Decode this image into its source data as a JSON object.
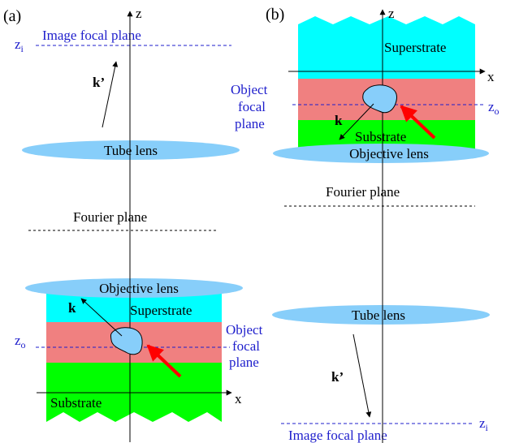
{
  "panel_a": {
    "label": "(a)",
    "z_axis": "z",
    "x_axis": "x",
    "zi_main": "z",
    "zi_sub": "i",
    "image_focal_plane": "Image focal plane",
    "k_prime": "k’",
    "tube_lens": "Tube lens",
    "fourier_plane": "Fourier plane",
    "objective_lens": "Objective lens",
    "k": "k",
    "superstrate": "Superstrate",
    "zo_main": "z",
    "zo_sub": "o",
    "object_focal_plane": [
      "Object",
      "focal",
      "plane"
    ],
    "substrate": "Substrate"
  },
  "panel_b": {
    "label": "(b)",
    "z_axis": "z",
    "x_axis": "x",
    "superstrate": "Superstrate",
    "object_focal_plane": [
      "Object",
      "focal",
      "plane"
    ],
    "k": "k",
    "substrate": "Substrate",
    "zo_main": "z",
    "zo_sub": "o",
    "objective_lens": "Objective lens",
    "fourier_plane": "Fourier plane",
    "tube_lens": "Tube lens",
    "k_prime": "k’",
    "zi_main": "z",
    "zi_sub": "i",
    "image_focal_plane": "Image focal plane"
  },
  "colors": {
    "superstrate": "#00ffff",
    "sample_layer": "#f08080",
    "substrate": "#00ff00",
    "lens": "#87cefa",
    "focal_label": "#1e1ecc",
    "red_arrow": "#ff0000"
  }
}
